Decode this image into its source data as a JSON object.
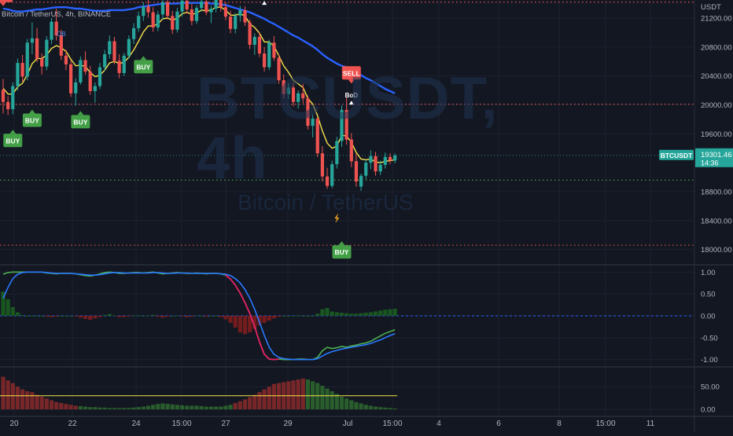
{
  "header": {
    "symbol_line": "Bitcoin / TetherUS, 4h, BINANCE",
    "currency": "USDT"
  },
  "watermark": {
    "title": "BTCUSDT, 4h",
    "subtitle": "Bitcoin / TetherUS"
  },
  "price_tag": {
    "symbol": "BTCUSDT",
    "price": "19301.46",
    "countdown": "14:36"
  },
  "colors": {
    "background": "#131722",
    "up": "#26a69a",
    "down": "#ef5350",
    "buy": "#43a047",
    "sell": "#ef5350",
    "ema_fast": "#f5e14b",
    "ma_slow": "#2962ff",
    "stoch_k": "#4caf50",
    "stoch_d": "#2979ff",
    "stoch_mix": "#e91e63"
  },
  "chart_data": [
    {
      "type": "candlestick",
      "pane": "price",
      "y_ticks": [
        "21200.00",
        "20800.00",
        "20400.00",
        "20000.00",
        "19600.00",
        "18800.00",
        "18400.00",
        "18000.00"
      ],
      "ylim": [
        17800,
        21450
      ],
      "x_ticks": [
        "20",
        "22",
        "24",
        "15:00",
        "27",
        "29",
        "Jul",
        "15:00",
        "4",
        "6",
        "8",
        "15:00",
        "11"
      ],
      "last_price": 19301.46,
      "horizontal_levels": [
        {
          "price": 21420,
          "style": "dotted",
          "color": "#ef5350"
        },
        {
          "price": 20010,
          "style": "dotted",
          "color": "#ef5350"
        },
        {
          "price": 18960,
          "style": "dotted",
          "color": "#43a047"
        },
        {
          "price": 18060,
          "style": "dotted",
          "color": "#ef5350"
        }
      ],
      "candles": [
        [
          20210,
          20360,
          19880,
          20040
        ],
        [
          20040,
          20120,
          19860,
          19940
        ],
        [
          19940,
          20310,
          19870,
          20260
        ],
        [
          20260,
          20640,
          20200,
          20580
        ],
        [
          20580,
          20690,
          20320,
          20390
        ],
        [
          20390,
          20910,
          20340,
          20860
        ],
        [
          20860,
          21140,
          20700,
          20920
        ],
        [
          20920,
          21060,
          20590,
          20640
        ],
        [
          20640,
          20710,
          20420,
          20530
        ],
        [
          20530,
          20950,
          20480,
          20900
        ],
        [
          20900,
          21200,
          20840,
          21150
        ],
        [
          21150,
          21330,
          20890,
          20960
        ],
        [
          20960,
          21040,
          20620,
          20680
        ],
        [
          20680,
          20760,
          20480,
          20560
        ],
        [
          20560,
          20620,
          20110,
          20160
        ],
        [
          20160,
          20370,
          19990,
          20310
        ],
        [
          20310,
          20670,
          20280,
          20620
        ],
        [
          20620,
          20740,
          20420,
          20460
        ],
        [
          20460,
          20540,
          20140,
          20190
        ],
        [
          20190,
          20310,
          20030,
          20260
        ],
        [
          20260,
          20580,
          20220,
          20520
        ],
        [
          20520,
          20760,
          20470,
          20700
        ],
        [
          20700,
          20960,
          20640,
          20880
        ],
        [
          20880,
          20940,
          20560,
          20610
        ],
        [
          20610,
          20700,
          20370,
          20440
        ],
        [
          20440,
          20720,
          20400,
          20680
        ],
        [
          20680,
          20960,
          20640,
          20910
        ],
        [
          20910,
          21130,
          20840,
          21060
        ],
        [
          21060,
          21290,
          21010,
          21230
        ],
        [
          21230,
          21420,
          21160,
          21360
        ],
        [
          21360,
          21480,
          21210,
          21280
        ],
        [
          21280,
          21350,
          21010,
          21070
        ],
        [
          21070,
          21300,
          21020,
          21250
        ],
        [
          21250,
          21470,
          21180,
          21420
        ],
        [
          21420,
          21480,
          21180,
          21230
        ],
        [
          21230,
          21300,
          20980,
          21040
        ],
        [
          21040,
          21340,
          21000,
          21290
        ],
        [
          21290,
          21480,
          21220,
          21440
        ],
        [
          21440,
          21480,
          21260,
          21320
        ],
        [
          21320,
          21400,
          21100,
          21160
        ],
        [
          21160,
          21380,
          21120,
          21340
        ],
        [
          21340,
          21480,
          21290,
          21430
        ],
        [
          21430,
          21480,
          21240,
          21280
        ],
        [
          21280,
          21370,
          21130,
          21330
        ],
        [
          21330,
          21480,
          21280,
          21460
        ],
        [
          21460,
          21480,
          21290,
          21350
        ],
        [
          21350,
          21420,
          21170,
          21220
        ],
        [
          21220,
          21300,
          20990,
          21050
        ],
        [
          21050,
          21270,
          20990,
          21230
        ],
        [
          21230,
          21370,
          21150,
          21310
        ],
        [
          21310,
          21360,
          21090,
          21140
        ],
        [
          21140,
          21180,
          20770,
          20830
        ],
        [
          20830,
          20990,
          20690,
          20940
        ],
        [
          20940,
          21000,
          20660,
          20710
        ],
        [
          20710,
          20800,
          20460,
          20520
        ],
        [
          20520,
          20900,
          20480,
          20860
        ],
        [
          20860,
          20950,
          20610,
          20650
        ],
        [
          20650,
          20700,
          20290,
          20340
        ],
        [
          20340,
          20420,
          20090,
          20150
        ],
        [
          20150,
          20300,
          20080,
          20240
        ],
        [
          20240,
          20310,
          19980,
          20040
        ],
        [
          20040,
          20200,
          19950,
          20160
        ],
        [
          20160,
          20290,
          20020,
          20090
        ],
        [
          20090,
          20130,
          19660,
          19710
        ],
        [
          19710,
          19870,
          19550,
          19810
        ],
        [
          19810,
          19830,
          19280,
          19330
        ],
        [
          19330,
          19430,
          18940,
          19010
        ],
        [
          19010,
          19130,
          18840,
          18880
        ],
        [
          18880,
          19230,
          18850,
          19180
        ],
        [
          19180,
          19560,
          19120,
          19500
        ],
        [
          19500,
          19990,
          19420,
          19930
        ],
        [
          19930,
          20100,
          19450,
          19520
        ],
        [
          19520,
          19610,
          19140,
          19220
        ],
        [
          19220,
          19330,
          18870,
          18940
        ],
        [
          18870,
          19050,
          18810,
          19020
        ],
        [
          19020,
          19240,
          18970,
          19200
        ],
        [
          19200,
          19370,
          19110,
          19290
        ],
        [
          19290,
          19350,
          19020,
          19080
        ],
        [
          19080,
          19230,
          19030,
          19170
        ],
        [
          19170,
          19340,
          19120,
          19280
        ],
        [
          19280,
          19330,
          19180,
          19230
        ],
        [
          19230,
          19330,
          19190,
          19300
        ]
      ],
      "series": [
        {
          "name": "",
          "kind": "fast",
          "values": [
            20230,
            20150,
            20150,
            20250,
            20300,
            20420,
            20570,
            20640,
            20640,
            20690,
            20780,
            20820,
            20790,
            20740,
            20630,
            20540,
            20550,
            20530,
            20450,
            20390,
            20410,
            20480,
            20580,
            20600,
            20570,
            20590,
            20660,
            20760,
            20880,
            21010,
            21090,
            21090,
            21120,
            21190,
            21200,
            21170,
            21200,
            21260,
            21280,
            21250,
            21270,
            21310,
            21300,
            21310,
            21350,
            21350,
            21310,
            21240,
            21240,
            21260,
            21230,
            21120,
            21070,
            20990,
            20870,
            20870,
            20810,
            20680,
            20540,
            20450,
            20340,
            20290,
            20240,
            20090,
            20010,
            19850,
            19640,
            19470,
            19400,
            19430,
            19580,
            19570,
            19480,
            19340,
            19250,
            19240,
            19250,
            19210,
            19200,
            19220,
            19230,
            19240
          ]
        },
        {
          "name": "",
          "kind": "slow",
          "values": [
            21330,
            21320,
            21300,
            21290,
            21290,
            21300,
            21310,
            21320,
            21320,
            21330,
            21340,
            21350,
            21350,
            21350,
            21340,
            21330,
            21330,
            21320,
            21310,
            21300,
            21300,
            21300,
            21310,
            21310,
            21310,
            21310,
            21320,
            21330,
            21350,
            21360,
            21370,
            21380,
            21390,
            21400,
            21400,
            21400,
            21400,
            21410,
            21410,
            21410,
            21410,
            21410,
            21410,
            21400,
            21400,
            21390,
            21380,
            21360,
            21340,
            21320,
            21300,
            21280,
            21250,
            21220,
            21190,
            21150,
            21120,
            21080,
            21040,
            21000,
            20960,
            20930,
            20890,
            20850,
            20810,
            20760,
            20700,
            20650,
            20610,
            20570,
            20540,
            20520,
            20490,
            20450,
            20410,
            20370,
            20340,
            20300,
            20260,
            20220,
            20190,
            20160
          ]
        }
      ],
      "signals": [
        {
          "index": 0,
          "label": "SELL",
          "side": "above",
          "price": 21420
        },
        {
          "index": 2,
          "label": "BUY",
          "side": "below",
          "price": 19600
        },
        {
          "index": 6,
          "label": "BUY",
          "side": "below",
          "price": 19880
        },
        {
          "index": 16,
          "label": "BUY",
          "side": "below",
          "price": 19860
        },
        {
          "index": 29,
          "label": "BUY",
          "side": "below",
          "price": 20620
        },
        {
          "index": 54,
          "label": "BoD",
          "side": "above",
          "price": 21460
        },
        {
          "index": 72,
          "label": "BoD",
          "side": "above",
          "price": 20080
        },
        {
          "index": 72,
          "label": "SELL",
          "side": "above",
          "price": 20350
        },
        {
          "index": 70,
          "label": "BUY",
          "side": "below",
          "price": 18060
        }
      ],
      "annotations": [
        {
          "index": 12,
          "label": "OB",
          "price": 20950
        }
      ]
    },
    {
      "type": "line",
      "pane": "stochastic",
      "y_ticks": [
        "1.00",
        "0.50",
        "0.00",
        "-0.50",
        "-1.00"
      ],
      "ylim": [
        -1.15,
        1.15
      ],
      "series": [
        {
          "name": "",
          "kind": "k",
          "values": [
            0.95,
            0.99,
            1.0,
            1.0,
            1.0,
            1.0,
            1.0,
            1.0,
            1.0,
            0.98,
            0.97,
            0.96,
            0.97,
            0.97,
            0.97,
            0.96,
            0.94,
            0.92,
            0.91,
            0.93,
            0.96,
            0.99,
            1.0,
            0.99,
            0.97,
            0.97,
            0.98,
            0.99,
            0.99,
            0.98,
            0.99,
            1.0,
            0.98,
            0.96,
            0.97,
            0.98,
            0.99,
            0.98,
            0.97,
            0.97,
            0.98,
            0.97,
            0.96,
            0.97,
            0.97,
            0.96,
            0.93,
            0.84,
            0.7,
            0.52,
            0.3,
            0.05,
            -0.25,
            -0.6,
            -0.88,
            -0.99,
            -1.0,
            -0.99,
            -1.0,
            -1.0,
            -1.0,
            -0.99,
            -0.99,
            -1.0,
            -1.0,
            -0.95,
            -0.8,
            -0.72,
            -0.75,
            -0.73,
            -0.7,
            -0.72,
            -0.69,
            -0.67,
            -0.64,
            -0.62,
            -0.58,
            -0.52,
            -0.46,
            -0.4,
            -0.36,
            -0.32
          ]
        },
        {
          "name": "",
          "kind": "d",
          "values": [
            0.4,
            0.65,
            0.85,
            0.95,
            0.99,
            1.0,
            1.0,
            1.0,
            1.0,
            0.99,
            0.98,
            0.97,
            0.97,
            0.97,
            0.97,
            0.96,
            0.95,
            0.94,
            0.93,
            0.93,
            0.94,
            0.96,
            0.98,
            0.99,
            0.99,
            0.98,
            0.98,
            0.98,
            0.98,
            0.98,
            0.98,
            0.99,
            0.99,
            0.98,
            0.97,
            0.97,
            0.98,
            0.98,
            0.98,
            0.97,
            0.97,
            0.97,
            0.97,
            0.97,
            0.97,
            0.96,
            0.95,
            0.92,
            0.85,
            0.75,
            0.6,
            0.4,
            0.15,
            -0.15,
            -0.45,
            -0.72,
            -0.88,
            -0.95,
            -0.98,
            -0.99,
            -1.0,
            -1.0,
            -1.0,
            -1.0,
            -1.0,
            -0.98,
            -0.92,
            -0.86,
            -0.82,
            -0.79,
            -0.76,
            -0.74,
            -0.72,
            -0.7,
            -0.68,
            -0.66,
            -0.63,
            -0.59,
            -0.55,
            -0.5,
            -0.45,
            -0.41
          ]
        }
      ],
      "histogram": [
        0.55,
        0.38,
        0.2,
        0.08,
        0.02,
        0.0,
        0.0,
        0.0,
        0.0,
        -0.02,
        -0.03,
        -0.02,
        0.0,
        0.0,
        0.0,
        -0.01,
        -0.04,
        -0.07,
        -0.09,
        -0.06,
        -0.03,
        0.02,
        0.04,
        0.01,
        -0.03,
        -0.03,
        -0.01,
        0.01,
        0.01,
        0.0,
        0.01,
        0.02,
        -0.02,
        -0.04,
        -0.02,
        0.0,
        0.01,
        -0.01,
        -0.03,
        -0.02,
        0.01,
        0.0,
        -0.02,
        0.0,
        0.0,
        -0.03,
        -0.08,
        -0.16,
        -0.27,
        -0.38,
        -0.42,
        -0.38,
        -0.3,
        -0.22,
        -0.16,
        -0.11,
        -0.06,
        -0.02,
        0.0,
        0.0,
        0.0,
        0.01,
        0.0,
        0.0,
        0.0,
        0.05,
        0.15,
        0.18,
        0.1,
        0.08,
        0.07,
        0.06,
        0.05,
        0.05,
        0.06,
        0.07,
        0.08,
        0.1,
        0.12,
        0.14,
        0.15,
        0.16
      ]
    },
    {
      "type": "bar",
      "pane": "oscillator",
      "y_ticks": [
        "50.00",
        "0.00"
      ],
      "ylim": [
        -12,
        92
      ],
      "threshold": 30,
      "values": [
        72,
        64,
        58,
        50,
        44,
        40,
        38,
        32,
        28,
        24,
        20,
        16,
        14,
        12,
        10,
        8,
        7,
        6,
        5,
        5,
        4,
        4,
        3,
        3,
        3,
        3,
        3,
        4,
        5,
        6,
        8,
        10,
        12,
        13,
        12,
        11,
        10,
        9,
        8,
        8,
        8,
        7,
        6,
        6,
        6,
        6,
        8,
        10,
        14,
        18,
        22,
        27,
        32,
        38,
        44,
        50,
        56,
        58,
        60,
        62,
        64,
        66,
        68,
        66,
        62,
        58,
        52,
        46,
        40,
        34,
        28,
        24,
        20,
        16,
        13,
        10,
        8,
        6,
        5,
        4,
        3,
        2
      ]
    }
  ]
}
